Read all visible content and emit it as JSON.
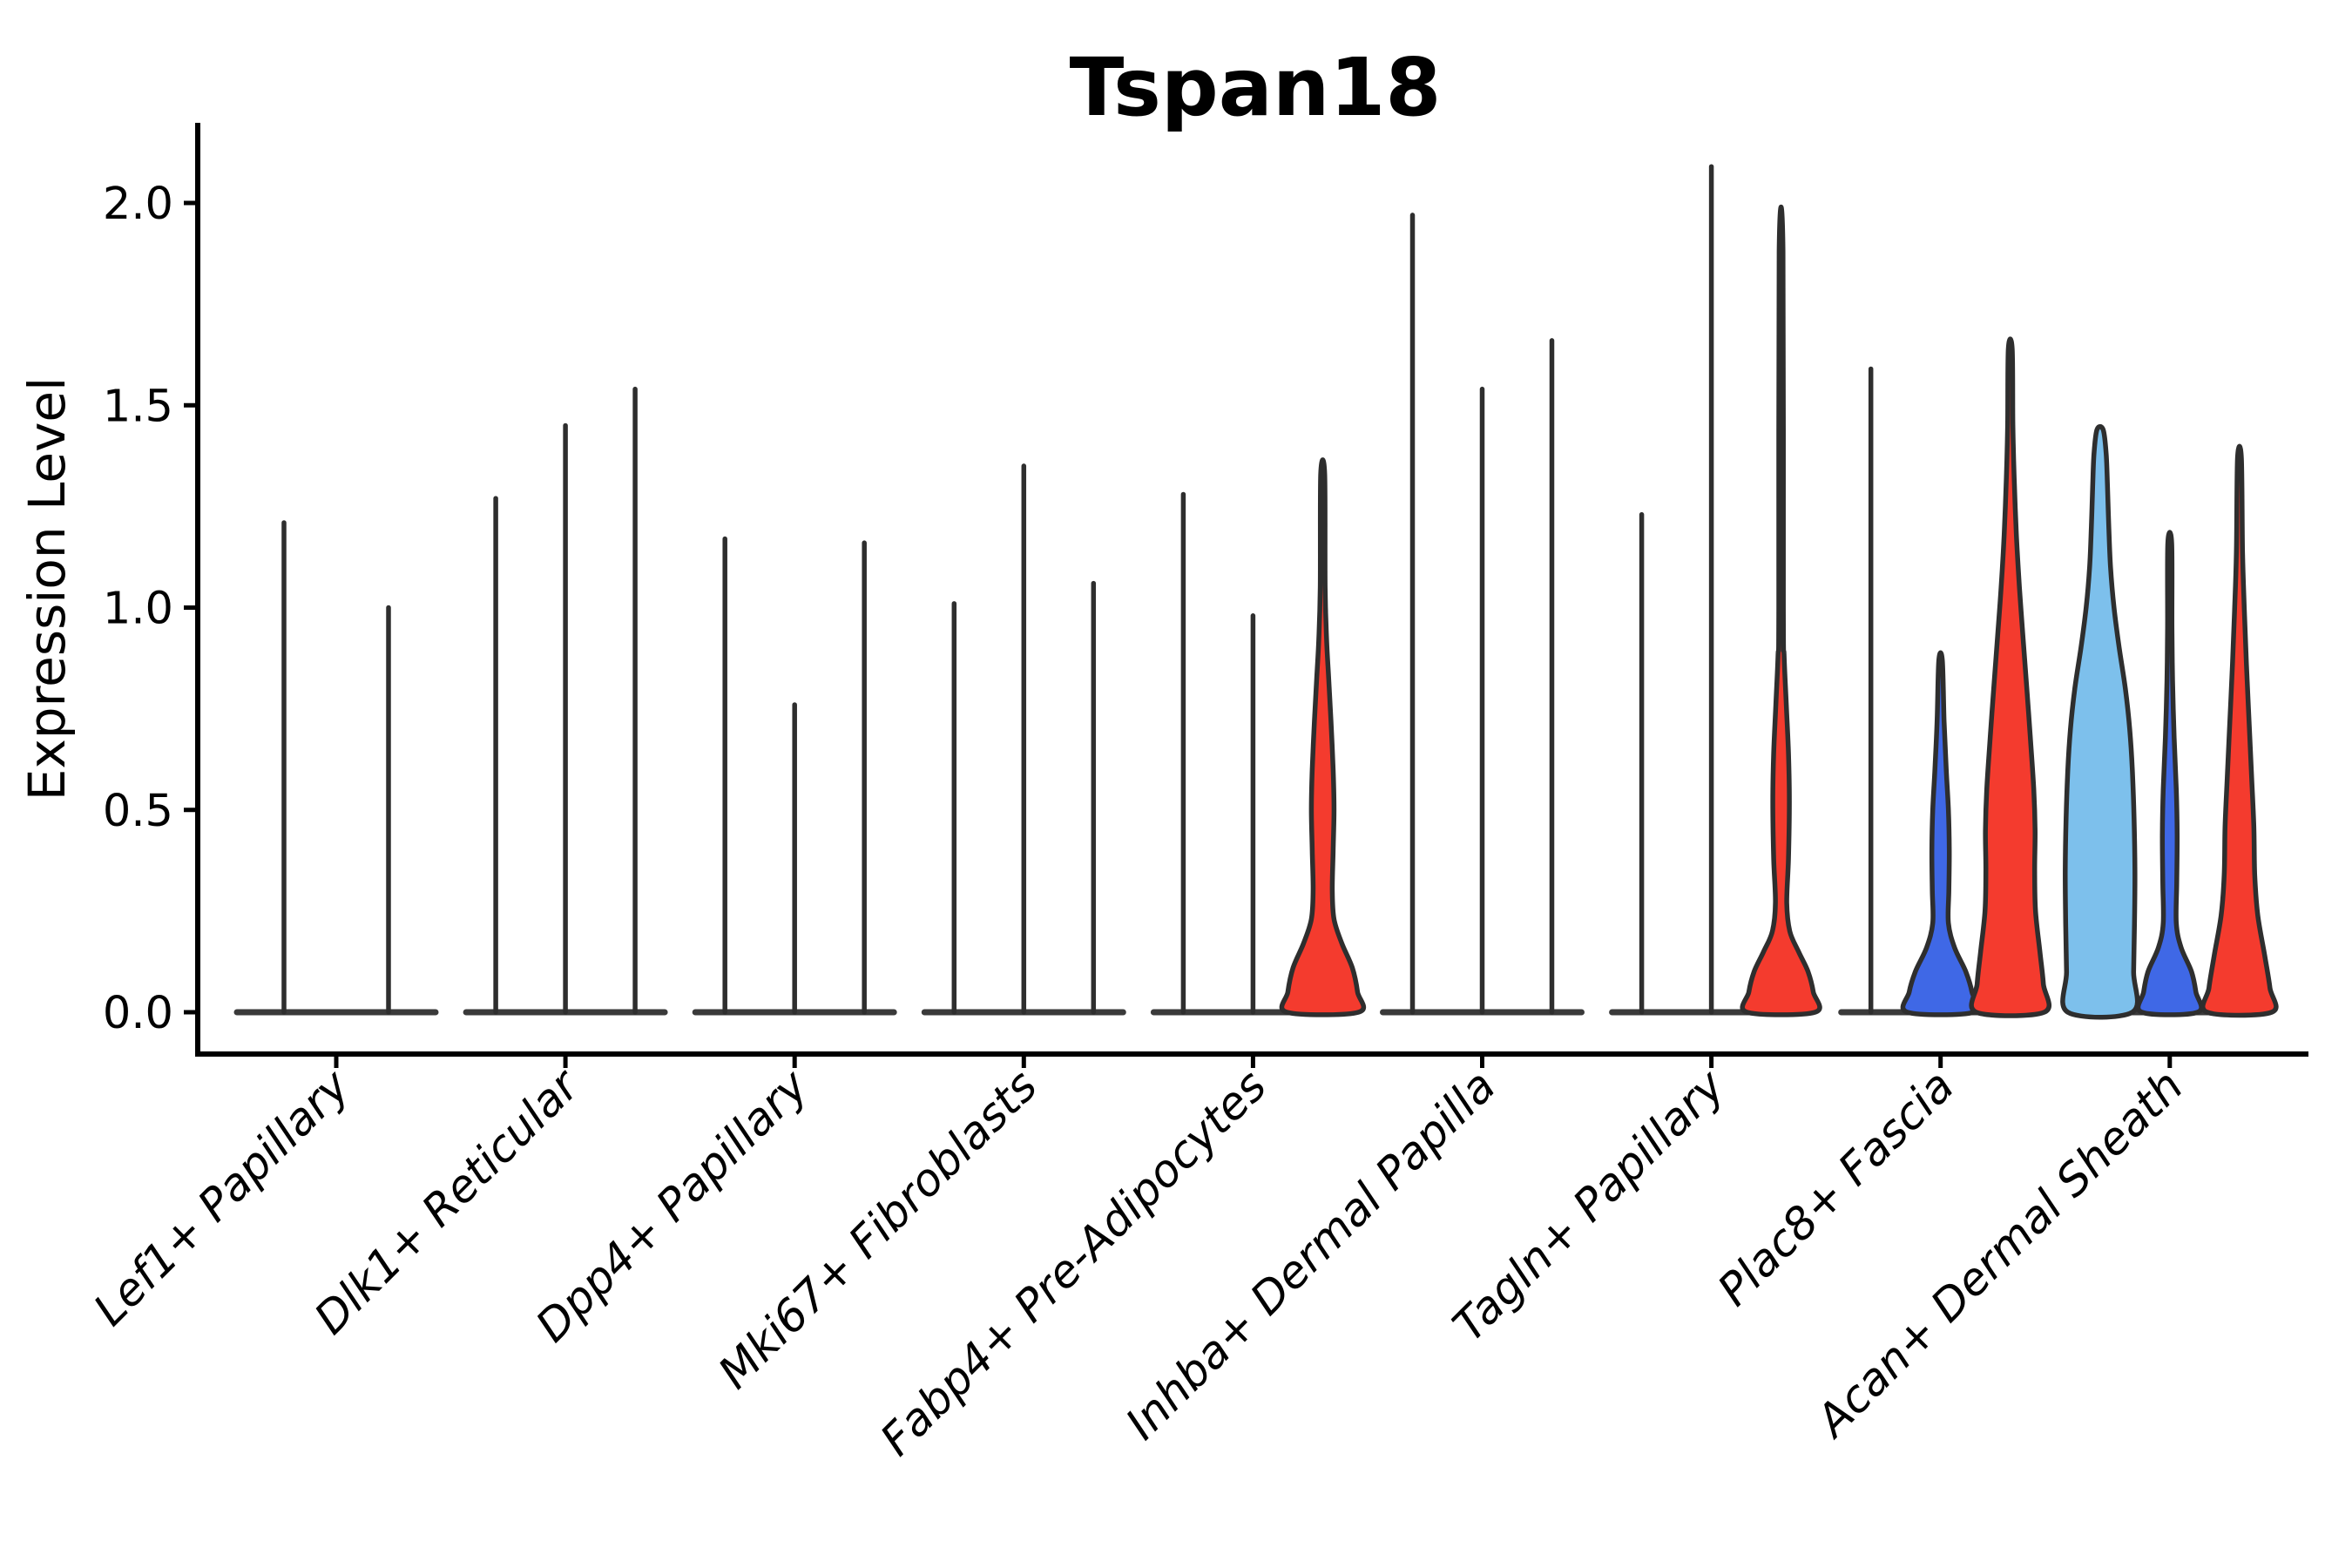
{
  "chart_data": {
    "type": "violin",
    "title": "Tspan18",
    "xlabel": "",
    "ylabel": "Expression Level",
    "y_ticks": [
      "0.0",
      "0.5",
      "1.0",
      "1.5",
      "2.0"
    ],
    "ylim": [
      -0.1,
      2.2
    ],
    "grid": false,
    "legend": "none",
    "palette": {
      "red": "#f43b2e",
      "blue": "#3f68e6",
      "lightblue": "#7dc0ec",
      "outline": "#2e2e2e",
      "baseline": "#3a3a3a",
      "axis": "#000000"
    },
    "categories": [
      {
        "label": "Lef1+ Papillary",
        "violins": [
          {
            "slot": -0.75,
            "max": 1.21,
            "kind": "spike"
          },
          {
            "slot": 0.75,
            "max": 1.0,
            "kind": "spike"
          }
        ]
      },
      {
        "label": "Dlk1+ Reticular",
        "violins": [
          {
            "slot": -1,
            "max": 1.27,
            "kind": "spike"
          },
          {
            "slot": 0,
            "max": 1.45,
            "kind": "spike"
          },
          {
            "slot": 1,
            "max": 1.54,
            "kind": "spike"
          }
        ]
      },
      {
        "label": "Dpp4+ Papillary",
        "violins": [
          {
            "slot": -1,
            "max": 1.17,
            "kind": "spike"
          },
          {
            "slot": 0,
            "max": 0.76,
            "kind": "spike"
          },
          {
            "slot": 1,
            "max": 1.16,
            "kind": "spike"
          }
        ]
      },
      {
        "label": "Mki67+ Fibroblasts",
        "violins": [
          {
            "slot": -1,
            "max": 1.01,
            "kind": "spike"
          },
          {
            "slot": 0,
            "max": 1.35,
            "kind": "spike"
          },
          {
            "slot": 1,
            "max": 1.06,
            "kind": "spike"
          }
        ]
      },
      {
        "label": "Fabp4+ Pre-Adipocytes",
        "violins": [
          {
            "slot": -1,
            "max": 1.28,
            "kind": "spike"
          },
          {
            "slot": 0,
            "max": 0.98,
            "kind": "spike"
          },
          {
            "slot": 1,
            "max": 1.33,
            "kind": "density",
            "color": "red",
            "profile": [
              [
                0,
                41
              ],
              [
                0.05,
                40
              ],
              [
                0.11,
                34
              ],
              [
                0.17,
                22
              ],
              [
                0.23,
                13
              ],
              [
                0.3,
                11
              ],
              [
                0.4,
                12
              ],
              [
                0.5,
                13
              ],
              [
                0.6,
                12
              ],
              [
                0.72,
                9.5
              ],
              [
                0.82,
                7
              ],
              [
                0.92,
                4.5
              ],
              [
                1.05,
                2.8
              ],
              [
                1.33,
                2.3
              ]
            ]
          }
        ]
      },
      {
        "label": "Inhba+ Dermal Papilla",
        "violins": [
          {
            "slot": -1,
            "max": 1.97,
            "kind": "spike"
          },
          {
            "slot": 0,
            "max": 1.54,
            "kind": "spike"
          },
          {
            "slot": 1,
            "max": 1.66,
            "kind": "spike"
          }
        ]
      },
      {
        "label": "Tagln+ Papillary",
        "violins": [
          {
            "slot": -1,
            "max": 1.23,
            "kind": "spike"
          },
          {
            "slot": 0,
            "max": 2.09,
            "kind": "spike"
          },
          {
            "slot": 1,
            "max": 1.88,
            "kind": "density",
            "color": "red",
            "profile": [
              [
                0,
                39
              ],
              [
                0.05,
                37
              ],
              [
                0.1,
                31
              ],
              [
                0.15,
                20
              ],
              [
                0.2,
                10
              ],
              [
                0.27,
                6.5
              ],
              [
                0.38,
                8.5
              ],
              [
                0.52,
                9.5
              ],
              [
                0.64,
                8.5
              ],
              [
                0.76,
                6
              ],
              [
                0.88,
                3.5
              ],
              [
                1.0,
                2.6
              ],
              [
                1.88,
                2.2
              ]
            ]
          }
        ]
      },
      {
        "label": "Plac8+ Fascia",
        "violins": [
          {
            "slot": -1,
            "max": 1.59,
            "kind": "spike"
          },
          {
            "slot": 0,
            "max": 0.87,
            "kind": "density",
            "color": "blue",
            "profile": [
              [
                0,
                38
              ],
              [
                0.05,
                36
              ],
              [
                0.1,
                29
              ],
              [
                0.16,
                16
              ],
              [
                0.22,
                9
              ],
              [
                0.3,
                9.5
              ],
              [
                0.4,
                10
              ],
              [
                0.5,
                9
              ],
              [
                0.6,
                6.5
              ],
              [
                0.72,
                4
              ],
              [
                0.87,
                2
              ]
            ]
          },
          {
            "slot": 1,
            "max": 1.64,
            "kind": "density",
            "color": "red",
            "profile": [
              [
                0,
                39
              ],
              [
                0.07,
                38
              ],
              [
                0.15,
                34
              ],
              [
                0.25,
                29
              ],
              [
                0.35,
                28
              ],
              [
                0.45,
                28.5
              ],
              [
                0.55,
                27
              ],
              [
                0.68,
                23
              ],
              [
                0.8,
                19
              ],
              [
                0.93,
                14.5
              ],
              [
                1.05,
                10.5
              ],
              [
                1.18,
                7
              ],
              [
                1.32,
                4.5
              ],
              [
                1.45,
                3
              ],
              [
                1.64,
                2.2
              ]
            ]
          }
        ]
      },
      {
        "label": "Acan+ Dermal Sheath",
        "violins": [
          {
            "slot": -1,
            "max": 1.44,
            "kind": "density",
            "color": "lightblue",
            "profile": [
              [
                0,
                37
              ],
              [
                0.1,
                38.5
              ],
              [
                0.22,
                39.5
              ],
              [
                0.35,
                40
              ],
              [
                0.48,
                39
              ],
              [
                0.6,
                37
              ],
              [
                0.7,
                34
              ],
              [
                0.8,
                29
              ],
              [
                0.9,
                22
              ],
              [
                1.0,
                16
              ],
              [
                1.1,
                12
              ],
              [
                1.2,
                10
              ],
              [
                1.3,
                8.5
              ],
              [
                1.38,
                7
              ],
              [
                1.44,
                3.5
              ]
            ]
          },
          {
            "slot": 0,
            "max": 1.16,
            "kind": "density",
            "color": "blue",
            "profile": [
              [
                0,
                32
              ],
              [
                0.05,
                30
              ],
              [
                0.1,
                25
              ],
              [
                0.16,
                13
              ],
              [
                0.22,
                7.5
              ],
              [
                0.32,
                8
              ],
              [
                0.44,
                8.5
              ],
              [
                0.55,
                7.5
              ],
              [
                0.68,
                5
              ],
              [
                0.82,
                3.2
              ],
              [
                0.95,
                2.5
              ],
              [
                1.16,
                2.2
              ]
            ]
          },
          {
            "slot": 1,
            "max": 1.37,
            "kind": "density",
            "color": "red",
            "profile": [
              [
                0,
                37
              ],
              [
                0.06,
                35
              ],
              [
                0.14,
                29
              ],
              [
                0.24,
                21
              ],
              [
                0.34,
                17.5
              ],
              [
                0.46,
                16.5
              ],
              [
                0.58,
                14
              ],
              [
                0.72,
                11
              ],
              [
                0.86,
                8
              ],
              [
                1.0,
                5.5
              ],
              [
                1.14,
                3.5
              ],
              [
                1.37,
                2.2
              ]
            ]
          }
        ]
      }
    ]
  }
}
